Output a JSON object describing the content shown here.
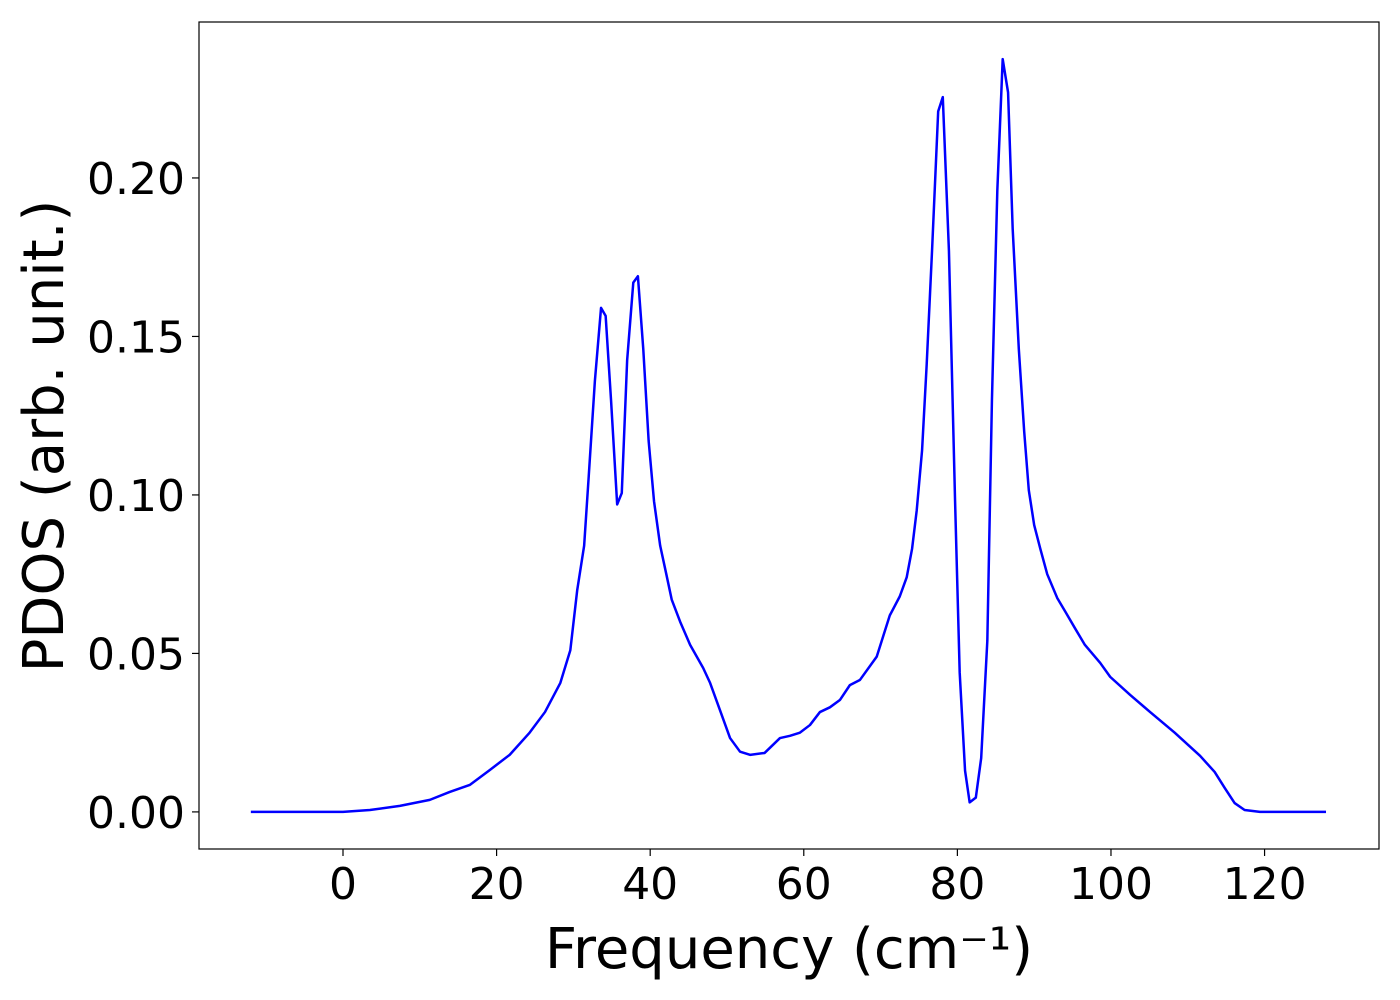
{
  "chart_data": {
    "type": "line",
    "xlabel": "Frequency (cm⁻¹)",
    "ylabel": "PDOS (arb. unit.)",
    "xlim": [
      -18.75,
      134.9
    ],
    "ylim": [
      -0.0117,
      0.2492
    ],
    "xticks": [
      0,
      20,
      40,
      60,
      80,
      100,
      120
    ],
    "yticks": [
      {
        "value": 0,
        "label": "0.00"
      },
      {
        "value": 0.05,
        "label": "0.05"
      },
      {
        "value": 0.1,
        "label": "0.10"
      },
      {
        "value": 0.15,
        "label": "0.15"
      },
      {
        "value": 0.2,
        "label": "0.20"
      }
    ],
    "grid": false,
    "series": [
      {
        "color": "#0000ff",
        "x": [
          -12,
          0,
          3.5,
          7.4,
          11.3,
          13.9,
          16.5,
          19.1,
          21.7,
          24.3,
          26.3,
          28.3,
          29.6,
          30.5,
          31.4,
          32.0,
          32.8,
          33.6,
          34.2,
          34.9,
          35.7,
          36.3,
          37.0,
          37.8,
          38.4,
          39.1,
          39.8,
          40.5,
          41.3,
          42.1,
          42.8,
          43.9,
          45.2,
          46.9,
          47.8,
          49.1,
          50.4,
          51.7,
          53.0,
          54.9,
          56.9,
          58.2,
          59.5,
          60.8,
          62.1,
          63.4,
          64.7,
          66.0,
          67.3,
          69.5,
          71.2,
          72.5,
          73.4,
          74.1,
          74.7,
          75.4,
          76.0,
          76.7,
          77.5,
          78.1,
          78.9,
          79.7,
          80.3,
          81.0,
          81.6,
          82.4,
          83.1,
          83.9,
          84.5,
          85.2,
          85.9,
          86.6,
          87.2,
          88.0,
          88.7,
          89.3,
          90.0,
          90.8,
          91.7,
          93.0,
          94.1,
          95.3,
          96.6,
          98.6,
          99.9,
          102.5,
          105.1,
          108.3,
          111.6,
          113.5,
          114.8,
          116.1,
          117.4,
          119.4,
          128
        ],
        "values": [
          0,
          0,
          0.0006,
          0.0019,
          0.0038,
          0.0063,
          0.0085,
          0.0132,
          0.018,
          0.025,
          0.0315,
          0.0407,
          0.051,
          0.07,
          0.084,
          0.106,
          0.136,
          0.159,
          0.1565,
          0.13,
          0.097,
          0.1006,
          0.1425,
          0.167,
          0.169,
          0.146,
          0.117,
          0.098,
          0.084,
          0.075,
          0.067,
          0.06,
          0.0527,
          0.0454,
          0.0407,
          0.032,
          0.0233,
          0.019,
          0.018,
          0.0186,
          0.0233,
          0.024,
          0.025,
          0.0274,
          0.0315,
          0.033,
          0.0353,
          0.04,
          0.0416,
          0.049,
          0.062,
          0.068,
          0.074,
          0.083,
          0.095,
          0.114,
          0.141,
          0.177,
          0.221,
          0.2255,
          0.177,
          0.098,
          0.044,
          0.013,
          0.003,
          0.0045,
          0.017,
          0.054,
          0.13,
          0.196,
          0.2375,
          0.227,
          0.184,
          0.146,
          0.12,
          0.1015,
          0.0905,
          0.083,
          0.075,
          0.0675,
          0.063,
          0.058,
          0.0527,
          0.047,
          0.0426,
          0.0369,
          0.0315,
          0.025,
          0.0177,
          0.0126,
          0.0076,
          0.0028,
          0.0006,
          0,
          0
        ]
      }
    ]
  }
}
